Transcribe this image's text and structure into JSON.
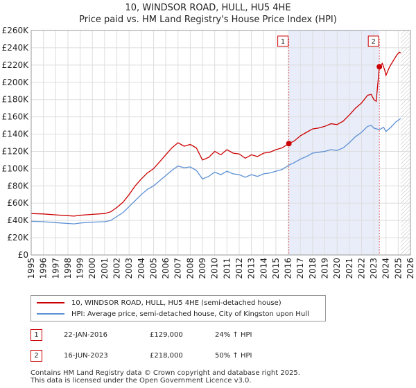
{
  "title": "10, WINDSOR ROAD, HULL, HU5 4HE",
  "subtitle": "Price paid vs. HM Land Registry's House Price Index (HPI)",
  "chart_data": {
    "type": "line",
    "xlim": [
      1995,
      2026
    ],
    "ylim": [
      0,
      260000
    ],
    "x_ticks": [
      "1995",
      "1996",
      "1997",
      "1998",
      "1999",
      "2000",
      "2001",
      "2002",
      "2003",
      "2004",
      "2005",
      "2006",
      "2007",
      "2008",
      "2009",
      "2010",
      "2011",
      "2012",
      "2013",
      "2014",
      "2015",
      "2016",
      "2017",
      "2018",
      "2019",
      "2020",
      "2021",
      "2022",
      "2023",
      "2024",
      "2025",
      "2026"
    ],
    "y_ticks": [
      {
        "value": 0,
        "label": "£0"
      },
      {
        "value": 20000,
        "label": "£20K"
      },
      {
        "value": 40000,
        "label": "£40K"
      },
      {
        "value": 60000,
        "label": "£60K"
      },
      {
        "value": 80000,
        "label": "£80K"
      },
      {
        "value": 100000,
        "label": "£100K"
      },
      {
        "value": 120000,
        "label": "£120K"
      },
      {
        "value": 140000,
        "label": "£140K"
      },
      {
        "value": 160000,
        "label": "£160K"
      },
      {
        "value": 180000,
        "label": "£180K"
      },
      {
        "value": 200000,
        "label": "£200K"
      },
      {
        "value": 220000,
        "label": "£220K"
      },
      {
        "value": 240000,
        "label": "£240K"
      },
      {
        "value": 260000,
        "label": "£260K"
      }
    ],
    "grid": true,
    "shaded_range": [
      2016.06,
      2023.46
    ],
    "future_hatch_from": 2025.2,
    "series": [
      {
        "name": "10, WINDSOR ROAD, HULL, HU5 4HE (semi-detached house)",
        "color": "#cc0000",
        "points": [
          [
            1995.0,
            48000
          ],
          [
            1996.0,
            47500
          ],
          [
            1997.0,
            46500
          ],
          [
            1998.0,
            45500
          ],
          [
            1998.5,
            45000
          ],
          [
            1999.0,
            46000
          ],
          [
            2000.0,
            47000
          ],
          [
            2001.0,
            48000
          ],
          [
            2001.5,
            50000
          ],
          [
            2002.0,
            55000
          ],
          [
            2002.5,
            61000
          ],
          [
            2003.0,
            70000
          ],
          [
            2003.5,
            80000
          ],
          [
            2004.0,
            88000
          ],
          [
            2004.5,
            95000
          ],
          [
            2005.0,
            100000
          ],
          [
            2005.5,
            108000
          ],
          [
            2006.0,
            116000
          ],
          [
            2006.5,
            124000
          ],
          [
            2007.0,
            130000
          ],
          [
            2007.5,
            126000
          ],
          [
            2008.0,
            128000
          ],
          [
            2008.5,
            124000
          ],
          [
            2009.0,
            110000
          ],
          [
            2009.5,
            113000
          ],
          [
            2010.0,
            120000
          ],
          [
            2010.5,
            116000
          ],
          [
            2011.0,
            122000
          ],
          [
            2011.5,
            118000
          ],
          [
            2012.0,
            117000
          ],
          [
            2012.5,
            112000
          ],
          [
            2013.0,
            116000
          ],
          [
            2013.5,
            114000
          ],
          [
            2014.0,
            118000
          ],
          [
            2014.5,
            119000
          ],
          [
            2015.0,
            122000
          ],
          [
            2015.5,
            124000
          ],
          [
            2016.06,
            129000
          ],
          [
            2016.5,
            132000
          ],
          [
            2017.0,
            138000
          ],
          [
            2017.5,
            142000
          ],
          [
            2018.0,
            146000
          ],
          [
            2018.5,
            147000
          ],
          [
            2019.0,
            149000
          ],
          [
            2019.5,
            152000
          ],
          [
            2020.0,
            151000
          ],
          [
            2020.5,
            155000
          ],
          [
            2021.0,
            162000
          ],
          [
            2021.5,
            170000
          ],
          [
            2022.0,
            176000
          ],
          [
            2022.5,
            185000
          ],
          [
            2022.8,
            186000
          ],
          [
            2023.0,
            180000
          ],
          [
            2023.2,
            178000
          ],
          [
            2023.46,
            218000
          ],
          [
            2023.7,
            222000
          ],
          [
            2023.9,
            214000
          ],
          [
            2024.0,
            208000
          ],
          [
            2024.3,
            218000
          ],
          [
            2024.6,
            225000
          ],
          [
            2024.9,
            232000
          ],
          [
            2025.1,
            235000
          ],
          [
            2025.2,
            234000
          ]
        ]
      },
      {
        "name": "HPI: Average price, semi-detached house, City of Kingston upon Hull",
        "color": "#5b8fd4",
        "points": [
          [
            1995.0,
            39000
          ],
          [
            1996.0,
            38500
          ],
          [
            1997.0,
            37500
          ],
          [
            1998.0,
            36500
          ],
          [
            1998.5,
            36000
          ],
          [
            1999.0,
            37000
          ],
          [
            2000.0,
            38000
          ],
          [
            2001.0,
            38500
          ],
          [
            2001.5,
            40000
          ],
          [
            2002.0,
            44500
          ],
          [
            2002.5,
            49000
          ],
          [
            2003.0,
            56000
          ],
          [
            2003.5,
            63000
          ],
          [
            2004.0,
            70000
          ],
          [
            2004.5,
            76000
          ],
          [
            2005.0,
            80000
          ],
          [
            2005.5,
            86000
          ],
          [
            2006.0,
            92000
          ],
          [
            2006.5,
            98000
          ],
          [
            2007.0,
            103000
          ],
          [
            2007.5,
            101000
          ],
          [
            2008.0,
            102000
          ],
          [
            2008.5,
            98000
          ],
          [
            2009.0,
            88000
          ],
          [
            2009.5,
            91000
          ],
          [
            2010.0,
            96000
          ],
          [
            2010.5,
            93000
          ],
          [
            2011.0,
            97000
          ],
          [
            2011.5,
            94000
          ],
          [
            2012.0,
            93000
          ],
          [
            2012.5,
            90000
          ],
          [
            2013.0,
            93000
          ],
          [
            2013.5,
            91000
          ],
          [
            2014.0,
            94000
          ],
          [
            2014.5,
            95000
          ],
          [
            2015.0,
            97000
          ],
          [
            2015.5,
            99000
          ],
          [
            2016.06,
            104000
          ],
          [
            2016.5,
            107000
          ],
          [
            2017.0,
            111000
          ],
          [
            2017.5,
            114000
          ],
          [
            2018.0,
            118000
          ],
          [
            2018.5,
            119000
          ],
          [
            2019.0,
            120000
          ],
          [
            2019.5,
            122000
          ],
          [
            2020.0,
            121000
          ],
          [
            2020.5,
            124000
          ],
          [
            2021.0,
            130000
          ],
          [
            2021.5,
            137000
          ],
          [
            2022.0,
            142000
          ],
          [
            2022.5,
            149000
          ],
          [
            2022.8,
            150000
          ],
          [
            2023.0,
            147000
          ],
          [
            2023.46,
            145000
          ],
          [
            2023.8,
            148000
          ],
          [
            2024.0,
            143000
          ],
          [
            2024.4,
            148000
          ],
          [
            2024.8,
            154000
          ],
          [
            2025.2,
            158000
          ]
        ]
      }
    ],
    "sales": [
      {
        "id": "1",
        "x": 2016.06,
        "price": 129000
      },
      {
        "id": "2",
        "x": 2023.46,
        "price": 218000
      }
    ]
  },
  "legend": {
    "property_label": "10, WINDSOR ROAD, HULL, HU5 4HE (semi-detached house)",
    "hpi_label": "HPI: Average price, semi-detached house, City of Kingston upon Hull",
    "property_color": "#cc0000",
    "hpi_color": "#5b8fd4"
  },
  "sales_table": [
    {
      "id": "1",
      "date": "22-JAN-2016",
      "price": "£129,000",
      "delta": "24% ↑ HPI"
    },
    {
      "id": "2",
      "date": "16-JUN-2023",
      "price": "£218,000",
      "delta": "50% ↑ HPI"
    }
  ],
  "footer": {
    "line1": "Contains HM Land Registry data © Crown copyright and database right 2025.",
    "line2": "This data is licensed under the Open Government Licence v3.0."
  }
}
